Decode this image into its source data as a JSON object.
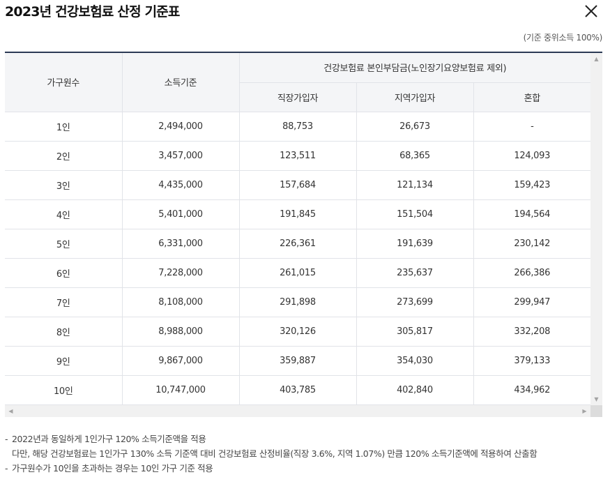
{
  "title": "2023년 건강보험료 산정 기준표",
  "unit_note": "(기준 중위소득 100%)",
  "table": {
    "headers": {
      "household": "가구원수",
      "income": "소득기준",
      "premium_group": "건강보험료 본인부담금(노인장기요양보험료 제외)",
      "employee": "직장가입자",
      "regional": "지역가입자",
      "mixed": "혼합"
    },
    "rows": [
      {
        "household": "1인",
        "income": "2,494,000",
        "employee": "88,753",
        "regional": "26,673",
        "mixed": "-"
      },
      {
        "household": "2인",
        "income": "3,457,000",
        "employee": "123,511",
        "regional": "68,365",
        "mixed": "124,093"
      },
      {
        "household": "3인",
        "income": "4,435,000",
        "employee": "157,684",
        "regional": "121,134",
        "mixed": "159,423"
      },
      {
        "household": "4인",
        "income": "5,401,000",
        "employee": "191,845",
        "regional": "151,504",
        "mixed": "194,564"
      },
      {
        "household": "5인",
        "income": "6,331,000",
        "employee": "226,361",
        "regional": "191,639",
        "mixed": "230,142"
      },
      {
        "household": "6인",
        "income": "7,228,000",
        "employee": "261,015",
        "regional": "235,637",
        "mixed": "266,386"
      },
      {
        "household": "7인",
        "income": "8,108,000",
        "employee": "291,898",
        "regional": "273,699",
        "mixed": "299,947"
      },
      {
        "household": "8인",
        "income": "8,988,000",
        "employee": "320,126",
        "regional": "305,817",
        "mixed": "332,208"
      },
      {
        "household": "9인",
        "income": "9,867,000",
        "employee": "359,887",
        "regional": "354,030",
        "mixed": "379,133"
      },
      {
        "household": "10인",
        "income": "10,747,000",
        "employee": "403,785",
        "regional": "402,840",
        "mixed": "434,962"
      }
    ]
  },
  "notes": [
    {
      "dash": "-",
      "text": "2022년과 동일하게 1인가구 120% 소득기준액을 적용"
    },
    {
      "dash": "",
      "text": "다만, 해당 건강보험료는 1인가구 130% 소득 기준액 대비 건강보험료 산정비율(직장 3.6%, 지역 1.07%) 만큼 120% 소득기준액에 적용하여 산출함"
    },
    {
      "dash": "-",
      "text": "가구원수가 10인을 초과하는 경우는 10인 가구 기준 적용"
    }
  ],
  "icons": {
    "close": "close-icon",
    "scroll_up": "chevron-up-icon",
    "scroll_down": "chevron-down-icon",
    "scroll_left": "chevron-left-icon",
    "scroll_right": "chevron-right-icon"
  },
  "colors": {
    "table_top_border": "#2b3a55",
    "header_bg": "#f4f5f7",
    "grid_line": "#e1e3e8"
  }
}
